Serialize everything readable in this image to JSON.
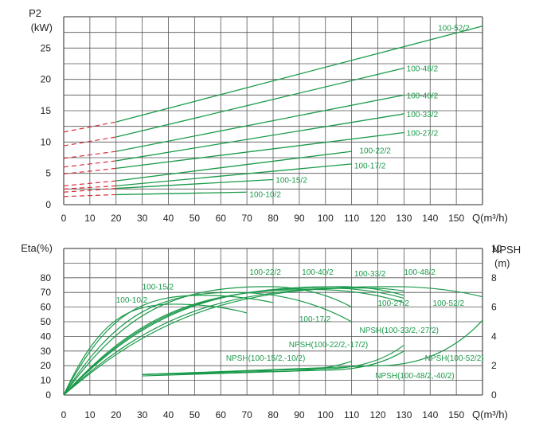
{
  "chart_data": [
    {
      "type": "line",
      "ylabel_line1": "P2",
      "ylabel_line2": "(kW)",
      "xlabel": "Q(m³/h)",
      "xlim": [
        0,
        160
      ],
      "ylim": [
        0,
        30
      ],
      "x_ticks": [
        "0",
        "10",
        "20",
        "30",
        "40",
        "50",
        "60",
        "70",
        "80",
        "90",
        "100",
        "110",
        "120",
        "130",
        "140",
        "150"
      ],
      "y_ticks": [
        "0",
        "5",
        "10",
        "15",
        "20",
        "25"
      ],
      "grid": true,
      "colors": {
        "curve": "#1a9a4a",
        "dashed": "#d6303a",
        "grid": "#555555"
      },
      "series": [
        {
          "name": "100-52/2",
          "x": [
            0,
            20,
            160
          ],
          "y": [
            11.6,
            13.2,
            28.5
          ],
          "dashed_until": 20,
          "label": {
            "x": 143,
            "y": 28.3
          }
        },
        {
          "name": "100-48/2",
          "x": [
            0,
            20,
            130
          ],
          "y": [
            9.4,
            10.8,
            21.8
          ],
          "dashed_until": 20,
          "label": {
            "x": 131,
            "y": 21.8
          }
        },
        {
          "name": "100-40/2",
          "x": [
            0,
            20,
            130
          ],
          "y": [
            7.4,
            8.5,
            17.5
          ],
          "dashed_until": 20,
          "label": {
            "x": 131,
            "y": 17.5
          }
        },
        {
          "name": "100-33/2",
          "x": [
            0,
            20,
            130
          ],
          "y": [
            6.0,
            7.0,
            14.5
          ],
          "dashed_until": 20,
          "label": {
            "x": 131,
            "y": 14.5
          }
        },
        {
          "name": "100-27/2",
          "x": [
            0,
            20,
            130
          ],
          "y": [
            4.9,
            5.8,
            11.5
          ],
          "dashed_until": 20,
          "label": {
            "x": 131,
            "y": 11.5
          }
        },
        {
          "name": "100-22/2",
          "x": [
            0,
            20,
            110
          ],
          "y": [
            3.0,
            3.8,
            8.5
          ],
          "dashed_until": 20,
          "label": {
            "x": 113,
            "y": 8.7
          }
        },
        {
          "name": "100-17/2",
          "x": [
            0,
            20,
            110
          ],
          "y": [
            2.5,
            3.0,
            6.5
          ],
          "dashed_until": 20,
          "label": {
            "x": 111,
            "y": 6.3
          }
        },
        {
          "name": "100-15/2",
          "x": [
            0,
            20,
            80
          ],
          "y": [
            2.0,
            2.6,
            4.0
          ],
          "dashed_until": 20,
          "label": {
            "x": 81,
            "y": 4.0
          }
        },
        {
          "name": "100-10/2",
          "x": [
            0,
            20,
            70
          ],
          "y": [
            1.3,
            1.6,
            2.0
          ],
          "dashed_until": 20,
          "label": {
            "x": 71,
            "y": 1.7
          }
        }
      ]
    },
    {
      "type": "line",
      "ylabel": "Eta(%)",
      "y2label_line1": "NPSH",
      "y2label_line2": "(m)",
      "xlabel": "Q(m³/h)",
      "xlim": [
        0,
        160
      ],
      "ylim": [
        0,
        100
      ],
      "y2lim": [
        0,
        10
      ],
      "x_ticks": [
        "0",
        "10",
        "20",
        "30",
        "40",
        "50",
        "60",
        "70",
        "80",
        "90",
        "100",
        "110",
        "120",
        "130",
        "140",
        "150"
      ],
      "y_ticks": [
        "0",
        "10",
        "20",
        "30",
        "40",
        "50",
        "60",
        "70",
        "80"
      ],
      "y2_ticks": [
        "0",
        "2",
        "4",
        "6",
        "8",
        "10"
      ],
      "grid": true,
      "colors": {
        "curve": "#1a9a4a",
        "grid": "#555555"
      },
      "efficiency_series": [
        {
          "name": "100-10/2",
          "peak_x": 42,
          "peak_y": 62,
          "end_x": 70,
          "end_y": 56
        },
        {
          "name": "100-15/2",
          "peak_x": 52,
          "peak_y": 68,
          "end_x": 80,
          "end_y": 63
        },
        {
          "name": "100-17/2",
          "peak_x": 65,
          "peak_y": 70,
          "end_x": 110,
          "end_y": 50
        },
        {
          "name": "100-22/2",
          "peak_x": 78,
          "peak_y": 74,
          "end_x": 110,
          "end_y": 60
        },
        {
          "name": "100-27/2",
          "peak_x": 95,
          "peak_y": 72,
          "end_x": 130,
          "end_y": 63
        },
        {
          "name": "100-33/2",
          "peak_x": 100,
          "peak_y": 73,
          "end_x": 130,
          "end_y": 66
        },
        {
          "name": "100-40/2",
          "peak_x": 105,
          "peak_y": 74,
          "end_x": 130,
          "end_y": 68
        },
        {
          "name": "100-48/2",
          "peak_x": 115,
          "peak_y": 73,
          "end_x": 130,
          "end_y": 71
        },
        {
          "name": "100-52/2",
          "peak_x": 125,
          "peak_y": 74,
          "end_x": 160,
          "end_y": 67
        }
      ],
      "npsh_series": [
        {
          "name": "NPSH(100-15/2,-10/2)",
          "x": [
            30,
            60,
            80
          ],
          "y": [
            1.4,
            1.5,
            1.7
          ]
        },
        {
          "name": "NPSH(100-22/2,-17/2)",
          "x": [
            30,
            80,
            110
          ],
          "y": [
            1.4,
            1.6,
            2.3
          ]
        },
        {
          "name": "NPSH(100-33/2,-27/2)",
          "x": [
            30,
            100,
            130
          ],
          "y": [
            1.4,
            1.8,
            3.4
          ]
        },
        {
          "name": "NPSH(100-48/2,-40/2)",
          "x": [
            30,
            100,
            130
          ],
          "y": [
            1.3,
            1.7,
            3.0
          ]
        },
        {
          "name": "NPSH(100-52/2)",
          "x": [
            30,
            120,
            160
          ],
          "y": [
            1.4,
            2.0,
            5.1
          ]
        }
      ],
      "eff_labels": [
        {
          "text": "100-10/2",
          "x": 20,
          "y": 63
        },
        {
          "text": "100-15/2",
          "x": 30,
          "y": 72
        },
        {
          "text": "100-22/2",
          "x": 71,
          "y": 82
        },
        {
          "text": "100-40/2",
          "x": 91,
          "y": 82
        },
        {
          "text": "100-33/2",
          "x": 111,
          "y": 81
        },
        {
          "text": "100-48/2",
          "x": 130,
          "y": 82
        },
        {
          "text": "100-27/2",
          "x": 120,
          "y": 61
        },
        {
          "text": "100-52/2",
          "x": 141,
          "y": 61
        },
        {
          "text": "100-17/2",
          "x": 90,
          "y": 50
        }
      ],
      "npsh_labels": [
        {
          "text": "NPSH(100-15/2,-10/2)",
          "x": 62,
          "y": 23.5
        },
        {
          "text": "NPSH(100-22/2,-17/2)",
          "x": 86,
          "y": 32.5
        },
        {
          "text": "NPSH(100-33/2,-27/2)",
          "x": 113,
          "y": 42.5
        },
        {
          "text": "NPSH(100-52/2)",
          "x": 138,
          "y": 23.5
        },
        {
          "text": "NPSH(100-48/2,-40/2)",
          "x": 119,
          "y": 11.5
        }
      ]
    }
  ]
}
